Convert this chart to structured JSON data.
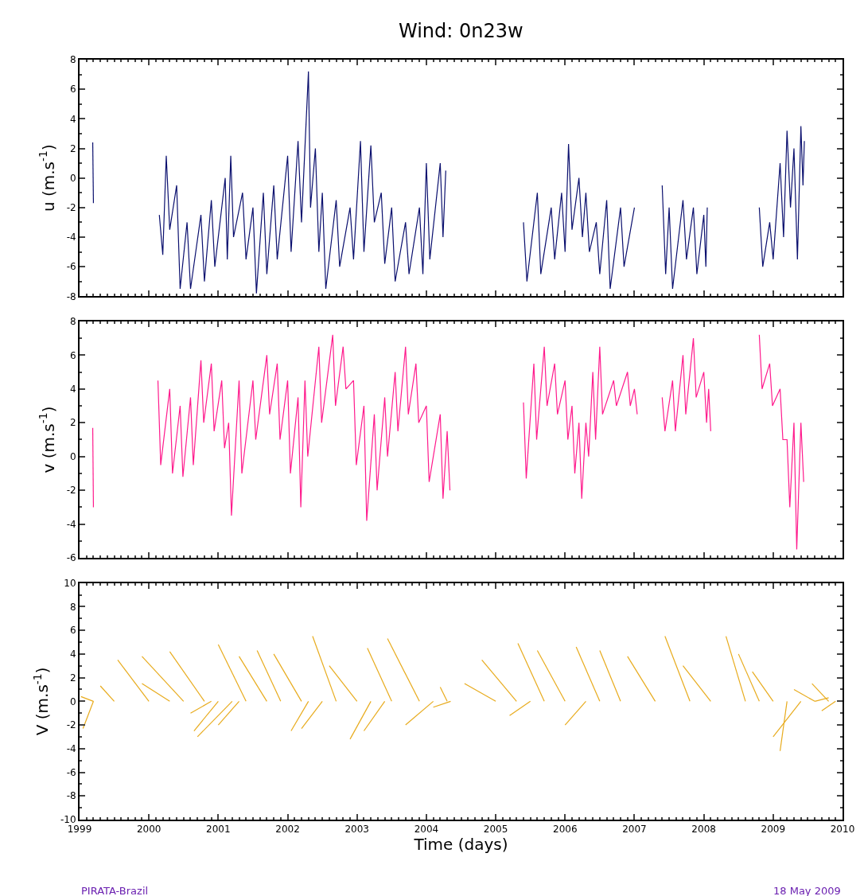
{
  "chart_data": [
    {
      "type": "line",
      "title": "Wind: 0n23w",
      "ylabel": "u (m.s$^{-1}$)",
      "xlim": [
        1999,
        2010
      ],
      "xticks": [
        1999,
        2000,
        2001,
        2002,
        2003,
        2004,
        2005,
        2006,
        2007,
        2008,
        2009,
        2010
      ],
      "ylim": [
        -8,
        8
      ],
      "yticks": [
        -8,
        -6,
        -4,
        -2,
        0,
        2,
        4,
        6,
        8
      ],
      "tick_labels": "y",
      "series": [
        {
          "color": "#0a0f6e",
          "x": [
            1999.19,
            1999.2,
            1999.6,
            2000.15,
            2000.2,
            2000.25,
            2000.3,
            2000.4,
            2000.45,
            2000.55,
            2000.6,
            2000.75,
            2000.8,
            2000.9,
            2000.95,
            2001.1,
            2001.13,
            2001.18,
            2001.22,
            2001.35,
            2001.4,
            2001.5,
            2001.55,
            2001.65,
            2001.7,
            2001.8,
            2001.85,
            2002.0,
            2002.05,
            2002.15,
            2002.2,
            2002.3,
            2002.33,
            2002.4,
            2002.45,
            2002.5,
            2002.55,
            2002.7,
            2002.75,
            2002.9,
            2002.95,
            2003.05,
            2003.1,
            2003.2,
            2003.25,
            2003.35,
            2003.4,
            2003.5,
            2003.55,
            2003.7,
            2003.75,
            2003.9,
            2003.95,
            2004.0,
            2004.05,
            2004.2,
            2004.24,
            2004.28,
            2004.8,
            2005.4,
            2005.45,
            2005.6,
            2005.65,
            2005.8,
            2005.85,
            2005.95,
            2006.0,
            2006.05,
            2006.1,
            2006.2,
            2006.25,
            2006.3,
            2006.35,
            2006.45,
            2006.5,
            2006.6,
            2006.65,
            2006.8,
            2006.85,
            2007.0,
            2007.2,
            2007.4,
            2007.45,
            2007.5,
            2007.55,
            2007.7,
            2007.75,
            2007.85,
            2007.9,
            2008.0,
            2008.03,
            2008.05,
            2008.4,
            2008.8,
            2008.85,
            2008.95,
            2009.0,
            2009.1,
            2009.15,
            2009.2,
            2009.25,
            2009.3,
            2009.35,
            2009.4,
            2009.43,
            2009.45
          ],
          "values": [
            2.4,
            -1.7,
            null,
            -2.5,
            -5.2,
            1.5,
            -3.5,
            -0.5,
            -7.5,
            -3,
            -7.5,
            -2.5,
            -7,
            -1.5,
            -6,
            0,
            -5.5,
            1.5,
            -4,
            -1,
            -5.5,
            -2,
            -7.8,
            -1,
            -6.5,
            -0.5,
            -5.5,
            1.5,
            -5,
            2.5,
            -3,
            7.2,
            -2,
            2,
            -5,
            -1,
            -7.5,
            -1.5,
            -6,
            -2,
            -5.5,
            2.5,
            -5,
            2.2,
            -3,
            -1,
            -5.8,
            -2,
            -7,
            -3,
            -6.5,
            -2,
            -6.5,
            1,
            -5.5,
            1,
            -4,
            0.5,
            null,
            -3,
            -7,
            -1,
            -6.5,
            -2,
            -5.5,
            -1,
            -5,
            2.3,
            -3.5,
            0,
            -4,
            -1,
            -5,
            -3,
            -6.5,
            -1.5,
            -7.5,
            -2,
            -6,
            -2,
            null,
            -0.5,
            -6.5,
            -2,
            -7.5,
            -1.5,
            -5.5,
            -2,
            -6.5,
            -2.5,
            -6,
            -2,
            null,
            -2,
            -6,
            -3,
            -5.5,
            1,
            -4,
            3.2,
            -2,
            2,
            -5.5,
            3.5,
            -0.5,
            2.5
          ]
        }
      ]
    },
    {
      "type": "line",
      "ylabel": "v (m.s$^{-1}$)",
      "xlim": [
        1999,
        2010
      ],
      "xticks": [
        1999,
        2000,
        2001,
        2002,
        2003,
        2004,
        2005,
        2006,
        2007,
        2008,
        2009,
        2010
      ],
      "ylim": [
        -6,
        8
      ],
      "yticks": [
        -6,
        -4,
        -2,
        0,
        2,
        4,
        6,
        8
      ],
      "tick_labels": "y",
      "series": [
        {
          "color": "#ff1a8c",
          "x": [
            1999.19,
            1999.2,
            1999.6,
            2000.13,
            2000.17,
            2000.3,
            2000.34,
            2000.45,
            2000.49,
            2000.6,
            2000.64,
            2000.75,
            2000.79,
            2000.9,
            2000.94,
            2001.05,
            2001.09,
            2001.15,
            2001.19,
            2001.3,
            2001.34,
            2001.5,
            2001.54,
            2001.7,
            2001.74,
            2001.85,
            2001.89,
            2002.0,
            2002.04,
            2002.15,
            2002.19,
            2002.25,
            2002.29,
            2002.45,
            2002.49,
            2002.65,
            2002.69,
            2002.8,
            2002.84,
            2002.95,
            2002.99,
            2003.1,
            2003.14,
            2003.25,
            2003.29,
            2003.4,
            2003.44,
            2003.55,
            2003.59,
            2003.7,
            2003.74,
            2003.85,
            2003.89,
            2004.0,
            2004.04,
            2004.2,
            2004.24,
            2004.3,
            2004.34,
            2004.8,
            2005.4,
            2005.44,
            2005.55,
            2005.59,
            2005.7,
            2005.74,
            2005.85,
            2005.89,
            2006.0,
            2006.04,
            2006.1,
            2006.14,
            2006.2,
            2006.24,
            2006.3,
            2006.34,
            2006.4,
            2006.44,
            2006.5,
            2006.54,
            2006.7,
            2006.74,
            2006.9,
            2006.94,
            2007.0,
            2007.04,
            2007.2,
            2007.4,
            2007.44,
            2007.55,
            2007.59,
            2007.7,
            2007.74,
            2007.85,
            2007.89,
            2008.0,
            2008.04,
            2008.07,
            2008.1,
            2008.4,
            2008.8,
            2008.84,
            2008.95,
            2008.99,
            2009.1,
            2009.14,
            2009.2,
            2009.24,
            2009.3,
            2009.34,
            2009.4,
            2009.44
          ],
          "values": [
            1.7,
            -3,
            null,
            4.5,
            -0.5,
            4,
            -1,
            3,
            -1.2,
            3.5,
            -0.5,
            5.7,
            2,
            5.5,
            1.5,
            4.5,
            0.5,
            2,
            -3.5,
            4.5,
            -1,
            4.5,
            1,
            6,
            2.5,
            5.5,
            1,
            4.5,
            -1,
            3.5,
            -3,
            4.5,
            0,
            6.5,
            2,
            7.2,
            3,
            6.5,
            4,
            4.5,
            -0.5,
            3,
            -3.8,
            2.5,
            -2,
            3.5,
            0,
            5,
            1.5,
            6.5,
            2.5,
            5.5,
            2,
            3,
            -1.5,
            2.5,
            -2.5,
            1.5,
            -2,
            null,
            3.2,
            -1.3,
            5.5,
            1,
            6.5,
            3,
            5.5,
            2.5,
            4.5,
            1,
            3,
            -1,
            2,
            -2.5,
            2,
            0,
            5,
            1,
            6.5,
            2.5,
            4.5,
            3,
            5,
            3,
            4,
            2.5,
            null,
            3.5,
            1.5,
            4.5,
            1.5,
            6,
            2.5,
            7,
            3.5,
            5,
            2,
            4,
            1.5,
            null,
            7.2,
            4,
            5.5,
            3,
            4,
            1,
            1,
            -3,
            2,
            -5.5,
            2,
            -1.5
          ]
        }
      ]
    },
    {
      "type": "line",
      "ylabel": "V (m.s$^{-1}$)",
      "xlabel": "Time (days)",
      "xlim": [
        1999,
        2010
      ],
      "xticks": [
        1999,
        2000,
        2001,
        2002,
        2003,
        2004,
        2005,
        2006,
        2007,
        2008,
        2009,
        2010
      ],
      "ylim": [
        -10,
        10
      ],
      "yticks": [
        -10,
        -8,
        -6,
        -4,
        -2,
        0,
        2,
        4,
        6,
        8,
        10
      ],
      "annotations": [
        "PIRATA-Brazil",
        "18 May 2009"
      ],
      "series": [
        {
          "color": "#e8ab1c",
          "x": [
            1999.2,
            1999.02,
            null,
            1999.2,
            1999.05,
            null,
            1999.5,
            1999.3,
            null,
            2000.0,
            1999.55,
            null,
            2000.3,
            1999.9,
            null,
            2000.5,
            1999.9,
            null,
            2000.8,
            2000.3,
            null,
            2000.9,
            2000.6,
            null,
            2001.0,
            2000.65,
            null,
            2001.2,
            2000.7,
            null,
            2001.3,
            2001.0,
            null,
            2001.4,
            2001.0,
            null,
            2001.7,
            2001.3,
            null,
            2001.9,
            2001.56,
            null,
            2002.2,
            2001.8,
            null,
            2002.3,
            2002.05,
            null,
            2002.5,
            2002.2,
            null,
            2002.7,
            2002.36,
            null,
            2003.0,
            2002.6,
            null,
            2003.2,
            2002.9,
            null,
            2003.4,
            2003.1,
            null,
            2003.5,
            2003.15,
            null,
            2003.9,
            2003.44,
            null,
            2004.1,
            2003.7,
            null,
            2004.3,
            2004.2,
            null,
            2004.35,
            2004.1,
            null,
            2005.0,
            2004.55,
            null,
            2005.3,
            2004.8,
            null,
            2005.5,
            2005.2,
            null,
            2005.7,
            2005.32,
            null,
            2006.0,
            2005.6,
            null,
            2006.3,
            2006.0,
            null,
            2006.5,
            2006.16,
            null,
            2006.8,
            2006.5,
            null,
            2007.3,
            2006.9,
            null,
            2007.8,
            2007.44,
            null,
            2008.1,
            2007.7,
            null,
            2008.6,
            2008.32,
            null,
            2008.8,
            2008.5,
            null,
            2009.0,
            2008.7,
            null,
            2009.2,
            2009.1,
            null,
            2009.4,
            2009.0,
            null,
            2009.6,
            2009.3,
            null,
            2009.8,
            2009.56,
            null,
            2009.9,
            2009.7,
            null,
            2009.6,
            2009.8,
            null
          ],
          "values": [
            0,
            0.4,
            null,
            0,
            -2.3,
            null,
            0,
            1.3,
            null,
            0,
            3.5,
            null,
            0,
            1.5,
            null,
            0,
            3.8,
            null,
            0,
            4.2,
            null,
            0,
            -1,
            null,
            0,
            -2.5,
            null,
            0,
            -3,
            null,
            0,
            -2,
            null,
            0,
            4.8,
            null,
            0,
            3.8,
            null,
            0,
            4.3,
            null,
            0,
            4,
            null,
            0,
            -2.5,
            null,
            0,
            -2.3,
            null,
            0,
            5.5,
            null,
            0,
            3,
            null,
            0,
            -3.2,
            null,
            0,
            -2.5,
            null,
            0,
            4.5,
            null,
            0,
            5.3,
            null,
            0,
            -2,
            null,
            0,
            1.2,
            null,
            0,
            -0.5,
            null,
            0,
            1.5,
            null,
            0,
            3.5,
            null,
            0,
            -1.2,
            null,
            0,
            4.9,
            null,
            0,
            4.3,
            null,
            0,
            -2,
            null,
            0,
            4.6,
            null,
            0,
            4.3,
            null,
            0,
            3.8,
            null,
            0,
            5.5,
            null,
            0,
            3,
            null,
            0,
            5.5,
            null,
            0,
            4,
            null,
            0,
            2.5,
            null,
            0,
            -4.2,
            null,
            0,
            -3,
            null,
            0,
            1,
            null,
            0,
            1.5,
            null,
            0,
            -0.8,
            null,
            0,
            0.3,
            null
          ]
        }
      ]
    }
  ]
}
